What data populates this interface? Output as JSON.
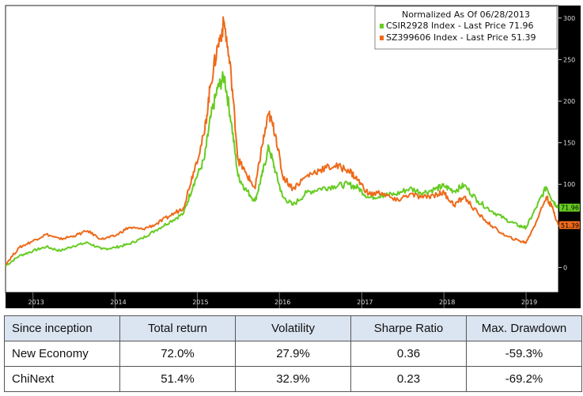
{
  "chart_data": {
    "type": "line",
    "ylim": [
      -30,
      315
    ],
    "yticks": [
      0,
      50,
      100,
      150,
      200,
      250,
      300
    ],
    "xlim": [
      "2012-09-01",
      "2019-05-25"
    ],
    "xticks": [
      {
        "label": "2013",
        "date": "2013-01-15"
      },
      {
        "label": "2014",
        "date": "2014-01-15"
      },
      {
        "label": "2015",
        "date": "2015-01-15"
      },
      {
        "label": "2016",
        "date": "2016-01-15"
      },
      {
        "label": "2017",
        "date": "2017-01-15"
      },
      {
        "label": "2018",
        "date": "2018-01-15"
      },
      {
        "label": "2019",
        "date": "2019-01-15"
      }
    ],
    "legend": {
      "title": "Normalized As Of 06/28/2013",
      "position": "top-right",
      "entries": [
        "CSIR2928 Index - Last Price 71.96",
        "SZ399606 Index - Last Price 51.39"
      ]
    },
    "series": [
      {
        "name": "CSIR2928 Index",
        "color": "#66cc22",
        "last_label": "71.96",
        "points": [
          [
            "2012-09-01",
            2
          ],
          [
            "2012-11-01",
            14
          ],
          [
            "2013-01-01",
            20
          ],
          [
            "2013-03-01",
            25
          ],
          [
            "2013-05-01",
            20
          ],
          [
            "2013-07-01",
            26
          ],
          [
            "2013-09-01",
            30
          ],
          [
            "2013-11-01",
            22
          ],
          [
            "2014-01-01",
            24
          ],
          [
            "2014-03-01",
            28
          ],
          [
            "2014-05-01",
            35
          ],
          [
            "2014-07-01",
            45
          ],
          [
            "2014-09-01",
            55
          ],
          [
            "2014-11-01",
            65
          ],
          [
            "2014-12-15",
            100
          ],
          [
            "2015-02-01",
            130
          ],
          [
            "2015-03-01",
            180
          ],
          [
            "2015-04-01",
            215
          ],
          [
            "2015-05-01",
            230
          ],
          [
            "2015-06-01",
            175
          ],
          [
            "2015-07-01",
            110
          ],
          [
            "2015-08-01",
            95
          ],
          [
            "2015-09-15",
            80
          ],
          [
            "2015-10-15",
            110
          ],
          [
            "2015-11-15",
            145
          ],
          [
            "2015-12-15",
            115
          ],
          [
            "2016-01-15",
            85
          ],
          [
            "2016-03-01",
            75
          ],
          [
            "2016-05-01",
            90
          ],
          [
            "2016-07-01",
            95
          ],
          [
            "2016-09-01",
            98
          ],
          [
            "2016-11-01",
            100
          ],
          [
            "2016-12-15",
            96
          ],
          [
            "2017-02-01",
            84
          ],
          [
            "2017-04-01",
            87
          ],
          [
            "2017-06-01",
            88
          ],
          [
            "2017-08-01",
            95
          ],
          [
            "2017-10-01",
            90
          ],
          [
            "2017-12-01",
            95
          ],
          [
            "2018-01-01",
            98
          ],
          [
            "2018-02-15",
            92
          ],
          [
            "2018-04-01",
            99
          ],
          [
            "2018-06-01",
            80
          ],
          [
            "2018-08-01",
            68
          ],
          [
            "2018-10-01",
            58
          ],
          [
            "2018-12-01",
            50
          ],
          [
            "2019-01-01",
            48
          ],
          [
            "2019-02-15",
            72
          ],
          [
            "2019-04-01",
            97
          ],
          [
            "2019-05-01",
            80
          ],
          [
            "2019-05-24",
            72
          ]
        ]
      },
      {
        "name": "SZ399606 Index",
        "color": "#ee6a1a",
        "last_label": "51.39",
        "points": [
          [
            "2012-09-01",
            4
          ],
          [
            "2012-11-01",
            24
          ],
          [
            "2013-01-01",
            32
          ],
          [
            "2013-03-01",
            40
          ],
          [
            "2013-05-01",
            34
          ],
          [
            "2013-07-01",
            38
          ],
          [
            "2013-09-01",
            44
          ],
          [
            "2013-11-01",
            34
          ],
          [
            "2014-01-01",
            38
          ],
          [
            "2014-03-01",
            48
          ],
          [
            "2014-05-01",
            46
          ],
          [
            "2014-07-01",
            52
          ],
          [
            "2014-09-01",
            62
          ],
          [
            "2014-11-01",
            72
          ],
          [
            "2014-12-15",
            115
          ],
          [
            "2015-02-01",
            160
          ],
          [
            "2015-03-01",
            220
          ],
          [
            "2015-04-01",
            265
          ],
          [
            "2015-05-01",
            295
          ],
          [
            "2015-06-01",
            230
          ],
          [
            "2015-07-01",
            130
          ],
          [
            "2015-08-01",
            115
          ],
          [
            "2015-09-15",
            95
          ],
          [
            "2015-10-15",
            145
          ],
          [
            "2015-11-15",
            185
          ],
          [
            "2015-12-15",
            160
          ],
          [
            "2016-01-15",
            110
          ],
          [
            "2016-03-01",
            95
          ],
          [
            "2016-05-01",
            110
          ],
          [
            "2016-07-01",
            118
          ],
          [
            "2016-09-01",
            122
          ],
          [
            "2016-11-01",
            118
          ],
          [
            "2016-12-15",
            105
          ],
          [
            "2017-02-01",
            88
          ],
          [
            "2017-04-01",
            90
          ],
          [
            "2017-06-01",
            80
          ],
          [
            "2017-08-01",
            88
          ],
          [
            "2017-10-01",
            84
          ],
          [
            "2017-12-01",
            88
          ],
          [
            "2018-01-01",
            90
          ],
          [
            "2018-02-15",
            75
          ],
          [
            "2018-04-01",
            85
          ],
          [
            "2018-06-01",
            65
          ],
          [
            "2018-08-01",
            50
          ],
          [
            "2018-10-01",
            38
          ],
          [
            "2018-12-01",
            32
          ],
          [
            "2019-01-01",
            30
          ],
          [
            "2019-02-15",
            55
          ],
          [
            "2019-04-01",
            85
          ],
          [
            "2019-05-01",
            70
          ],
          [
            "2019-05-24",
            51
          ]
        ]
      }
    ]
  },
  "table": {
    "headers": [
      "Since inception",
      "Total return",
      "Volatility",
      "Sharpe Ratio",
      "Max. Drawdown"
    ],
    "rows": [
      [
        "New Economy",
        "72.0%",
        "27.9%",
        "0.36",
        "-59.3%"
      ],
      [
        "ChiNext",
        "51.4%",
        "32.9%",
        "0.23",
        "-69.2%"
      ]
    ]
  }
}
